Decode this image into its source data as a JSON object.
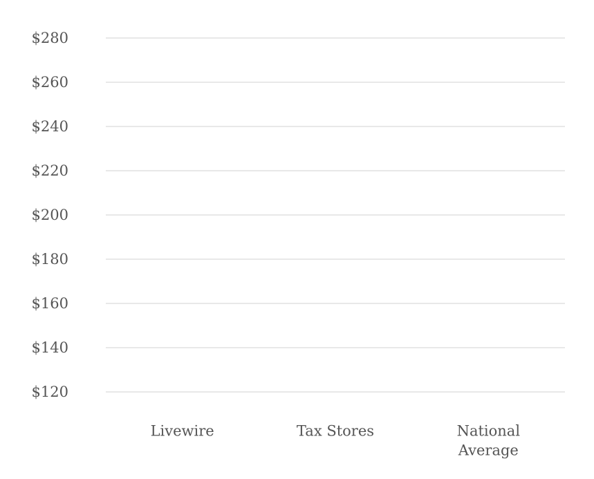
{
  "chart_data": {
    "type": "bar",
    "title": "",
    "xlabel": "",
    "ylabel": "",
    "categories": [
      [
        "Livewire"
      ],
      [
        "Tax Stores"
      ],
      [
        "National",
        "Average"
      ]
    ],
    "series": [],
    "ylim": [
      120,
      280
    ],
    "y_ticks": [
      120,
      140,
      160,
      180,
      200,
      220,
      240,
      260,
      280
    ],
    "y_tick_labels": [
      "$120",
      "$140",
      "$160",
      "$180",
      "$200",
      "$220",
      "$240",
      "$260",
      "$280"
    ],
    "grid": true,
    "legend": "none",
    "colors": {
      "text": "#555555",
      "grid": "#d9d9d9",
      "background": "#ffffff"
    }
  }
}
